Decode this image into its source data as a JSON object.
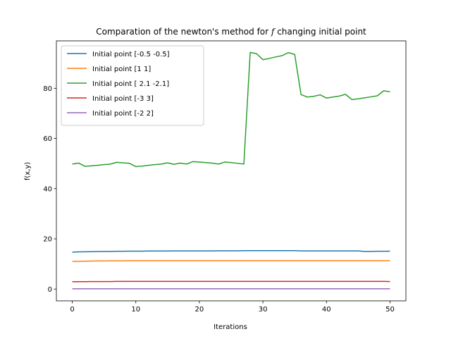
{
  "chart_data": {
    "type": "line",
    "title": "Comparation of the newton's method for",
    "title_math": "f",
    "title_suffix": "changing initial point",
    "xlabel": "Iterations",
    "ylabel": "f(x,y)",
    "xlim": [
      -2.5,
      52.5
    ],
    "ylim": [
      -4.7,
      98.9
    ],
    "xticks": [
      0,
      10,
      20,
      30,
      40,
      50
    ],
    "yticks": [
      0,
      20,
      40,
      60,
      80
    ],
    "legend_loc": "upper-left",
    "grid": false,
    "x": [
      0,
      1,
      2,
      3,
      4,
      5,
      6,
      7,
      8,
      9,
      10,
      11,
      12,
      13,
      14,
      15,
      16,
      17,
      18,
      19,
      20,
      21,
      22,
      23,
      24,
      25,
      26,
      27,
      28,
      29,
      30,
      31,
      32,
      33,
      34,
      35,
      36,
      37,
      38,
      39,
      40,
      41,
      42,
      43,
      44,
      45,
      46,
      47,
      48,
      49,
      50
    ],
    "series": [
      {
        "name": "Initial point [-0.5 -0.5]",
        "color": "#1f77b4",
        "values": [
          14.7,
          14.8,
          14.85,
          14.9,
          14.95,
          15.0,
          15.0,
          15.05,
          15.05,
          15.1,
          15.1,
          15.1,
          15.15,
          15.15,
          15.15,
          15.15,
          15.2,
          15.2,
          15.2,
          15.2,
          15.2,
          15.2,
          15.2,
          15.25,
          15.25,
          15.25,
          15.25,
          15.3,
          15.3,
          15.3,
          15.3,
          15.3,
          15.3,
          15.3,
          15.3,
          15.3,
          15.2,
          15.2,
          15.2,
          15.2,
          15.2,
          15.2,
          15.2,
          15.2,
          15.2,
          15.2,
          15.0,
          15.0,
          15.05,
          15.05,
          15.1
        ]
      },
      {
        "name": "Initial point [1 1]",
        "color": "#ff7f0e",
        "values": [
          11.0,
          11.05,
          11.1,
          11.15,
          11.2,
          11.2,
          11.25,
          11.25,
          11.25,
          11.3,
          11.3,
          11.3,
          11.3,
          11.3,
          11.3,
          11.3,
          11.3,
          11.3,
          11.3,
          11.3,
          11.3,
          11.3,
          11.3,
          11.3,
          11.3,
          11.3,
          11.3,
          11.3,
          11.3,
          11.3,
          11.3,
          11.3,
          11.3,
          11.3,
          11.3,
          11.3,
          11.3,
          11.3,
          11.3,
          11.3,
          11.3,
          11.3,
          11.3,
          11.3,
          11.3,
          11.3,
          11.3,
          11.3,
          11.3,
          11.3,
          11.3
        ]
      },
      {
        "name": "Initial point [ 2.1 -2.1]",
        "color": "#2ca02c",
        "values": [
          49.8,
          50.2,
          48.9,
          49.1,
          49.3,
          49.6,
          49.8,
          50.5,
          50.3,
          50.1,
          48.8,
          49.0,
          49.3,
          49.6,
          49.8,
          50.3,
          49.7,
          50.2,
          49.8,
          50.8,
          50.6,
          50.4,
          50.2,
          49.8,
          50.6,
          50.4,
          50.1,
          49.8,
          94.3,
          93.8,
          91.4,
          91.9,
          92.5,
          93.0,
          94.2,
          93.5,
          77.5,
          76.5,
          76.8,
          77.4,
          76.1,
          76.5,
          76.9,
          77.6,
          75.5,
          75.8,
          76.2,
          76.6,
          77.0,
          79.0,
          78.6
        ]
      },
      {
        "name": "Initial point [-3  3]",
        "color": "#d62728",
        "values": [
          2.9,
          2.95,
          2.95,
          3.0,
          3.0,
          3.0,
          3.0,
          3.05,
          3.05,
          3.05,
          3.05,
          3.05,
          3.05,
          3.05,
          3.05,
          3.05,
          3.05,
          3.05,
          3.05,
          3.05,
          3.05,
          3.05,
          3.05,
          3.05,
          3.05,
          3.05,
          3.05,
          3.05,
          3.05,
          3.05,
          3.05,
          3.05,
          3.05,
          3.05,
          3.05,
          3.05,
          3.05,
          3.05,
          3.05,
          3.05,
          3.05,
          3.05,
          3.05,
          3.05,
          3.05,
          3.05,
          3.05,
          3.05,
          3.05,
          3.05,
          3.0
        ]
      },
      {
        "name": "Initial point [-2  2]",
        "color": "#9467bd",
        "values": [
          0.1,
          0.1,
          0.1,
          0.1,
          0.1,
          0.1,
          0.1,
          0.1,
          0.1,
          0.1,
          0.1,
          0.1,
          0.1,
          0.1,
          0.1,
          0.1,
          0.1,
          0.1,
          0.1,
          0.1,
          0.1,
          0.1,
          0.1,
          0.1,
          0.1,
          0.1,
          0.1,
          0.1,
          0.1,
          0.1,
          0.1,
          0.1,
          0.1,
          0.1,
          0.1,
          0.1,
          0.1,
          0.1,
          0.1,
          0.1,
          0.1,
          0.1,
          0.1,
          0.1,
          0.1,
          0.1,
          0.1,
          0.1,
          0.1,
          0.1,
          0.1
        ]
      }
    ]
  }
}
